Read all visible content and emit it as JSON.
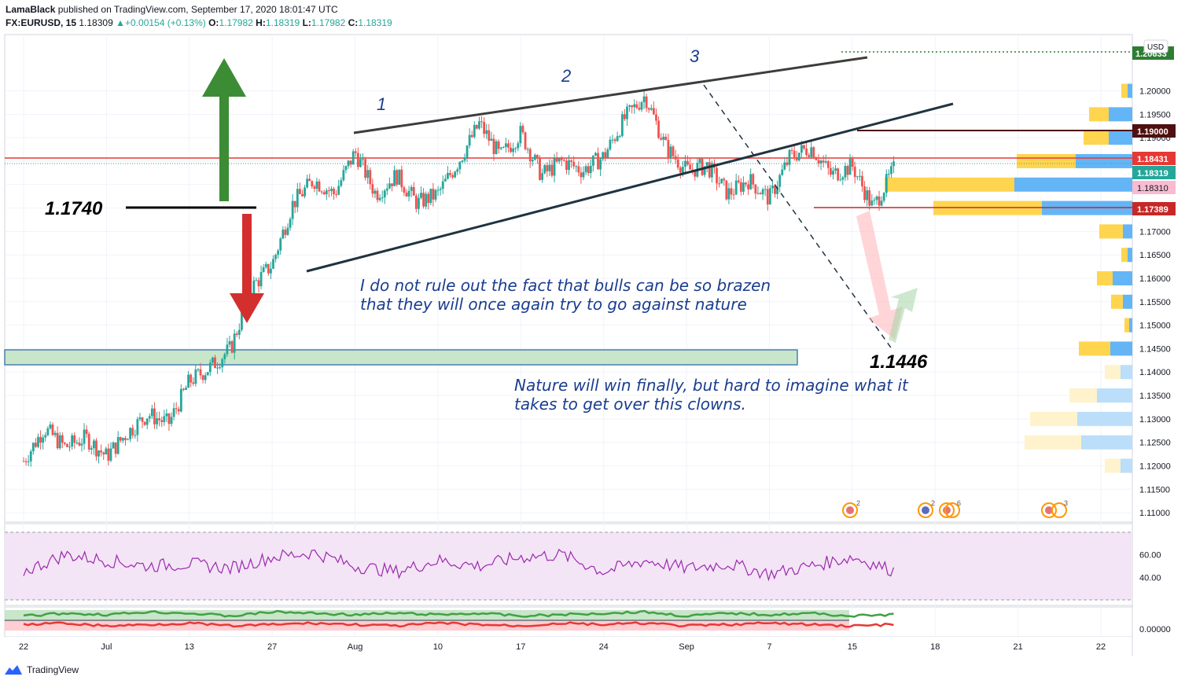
{
  "header": {
    "author": "LamaBlack",
    "published_text": "published on TradingView.com, September 17, 2020 18:01:47 UTC",
    "symbol": "FX:EURUSD, 15",
    "last": "1.18309",
    "change": "+0.00154 (+0.13%)",
    "o_label": "O:",
    "o_value": "1.17982",
    "h_label": "H:",
    "h_value": "1.18319",
    "l_label": "L:",
    "l_value": "1.17982",
    "c_label": "C:",
    "c_value": "1.18319"
  },
  "footer": {
    "brand": "TradingView"
  },
  "colors": {
    "bull": "#26a69a",
    "bear": "#ef5350",
    "grid": "#f0f3fa",
    "rsi": "#9c27b0",
    "rsi_band": "#f3e5f5",
    "support_zone": "#c8e6c9",
    "vol_up": "#64b5f6",
    "vol_down": "#ffd54f"
  },
  "chart_data": [
    {
      "type": "candlestick",
      "title": "EURUSD",
      "currency": "USD",
      "ylim": [
        1.108,
        1.212
      ],
      "y_ticks": [
        "1.20000",
        "1.19500",
        "1.19000",
        "1.18500",
        "1.18000",
        "1.17500",
        "1.17000",
        "1.16500",
        "1.16000",
        "1.15500",
        "1.15000",
        "1.14500",
        "1.14000",
        "1.13500",
        "1.13000",
        "1.12500",
        "1.12000",
        "1.11500",
        "1.11000"
      ],
      "x_ticks": [
        "22",
        "Jul",
        "13",
        "27",
        "Aug",
        "10",
        "17",
        "24",
        "Sep",
        "7",
        "15",
        "18",
        "21",
        "22"
      ],
      "x_ticks_at": [
        0,
        2,
        4,
        6,
        8,
        10,
        12,
        14,
        16,
        18,
        20,
        22,
        24,
        26
      ],
      "series": [
        {
          "x": [
            0,
            0.5,
            1,
            1.5,
            2,
            2.5,
            3,
            3.5,
            4,
            4.5,
            5,
            5.5,
            6,
            6.5,
            7,
            7.5,
            8,
            8.5,
            9,
            9.5,
            10,
            10.5,
            11,
            11.5,
            12,
            12.5,
            13,
            13.5,
            14,
            14.5,
            15,
            15.5,
            16,
            16.5,
            17,
            17.5,
            18,
            18.5,
            19,
            19.5,
            20,
            20.5,
            21
          ],
          "close": [
            1.121,
            1.128,
            1.124,
            1.126,
            1.122,
            1.127,
            1.131,
            1.129,
            1.138,
            1.141,
            1.145,
            1.158,
            1.163,
            1.176,
            1.181,
            1.178,
            1.187,
            1.178,
            1.182,
            1.176,
            1.178,
            1.185,
            1.193,
            1.186,
            1.191,
            1.182,
            1.185,
            1.183,
            1.186,
            1.194,
            1.199,
            1.188,
            1.183,
            1.184,
            1.178,
            1.181,
            1.177,
            1.186,
            1.188,
            1.182,
            1.184,
            1.175,
            1.1832
          ]
        }
      ],
      "price_labels": [
        "1.19000",
        "1.18431",
        "1.18319",
        "1.18310",
        "1.17389",
        "1.20633"
      ],
      "volume_profile": [
        {
          "price": "1.2000",
          "up": 8,
          "down": 6
        },
        {
          "price": "1.1950",
          "up": 25,
          "down": 30
        },
        {
          "price": "1.1900",
          "up": 32,
          "down": 30
        },
        {
          "price": "1.1850",
          "up": 75,
          "down": 72
        },
        {
          "price": "1.1800",
          "up": 165,
          "down": 150
        },
        {
          "price": "1.1750",
          "up": 138,
          "down": 115
        },
        {
          "price": "1.1700",
          "up": 30,
          "down": 12
        },
        {
          "price": "1.1650",
          "up": 8,
          "down": 6
        },
        {
          "price": "1.1600",
          "up": 20,
          "down": 25
        },
        {
          "price": "1.1550",
          "up": 15,
          "down": 12
        },
        {
          "price": "1.1500",
          "up": 6,
          "down": 4
        },
        {
          "price": "1.1450",
          "up": 40,
          "down": 28
        },
        {
          "price": "1.1400",
          "up": 20,
          "down": 15
        },
        {
          "price": "1.1350",
          "up": 35,
          "down": 45
        },
        {
          "price": "1.1300",
          "up": 60,
          "down": 70
        },
        {
          "price": "1.1250",
          "up": 72,
          "down": 65
        },
        {
          "price": "1.1200",
          "up": 20,
          "down": 15
        }
      ],
      "annotations": {
        "wave_labels": [
          "1",
          "2",
          "3"
        ],
        "level_label": "1.1740",
        "target_label": "1.1446",
        "text1_line1": "I do not rule out the fact that bulls can be so brazen",
        "text1_line2": "that they will once again try to go against nature",
        "text2_line1": "Nature will win finally, but hard to imagine what it",
        "text2_line2": "takes to get over this clowns."
      }
    },
    {
      "type": "line",
      "title": "RSI",
      "ylim": [
        20,
        80
      ],
      "y_ticks": [
        "60.00",
        "40.00"
      ],
      "series": [
        {
          "x": [
            0,
            1,
            2,
            3,
            4,
            5,
            6,
            7,
            8,
            9,
            10,
            11,
            12,
            13,
            14,
            15,
            16,
            17,
            18,
            19,
            20,
            21
          ],
          "values": [
            45,
            60,
            55,
            50,
            52,
            48,
            58,
            62,
            50,
            45,
            55,
            50,
            58,
            60,
            45,
            55,
            48,
            52,
            43,
            50,
            58,
            46
          ]
        }
      ]
    },
    {
      "type": "area",
      "title": "Oscillator",
      "y_ticks": [
        "0.00000"
      ],
      "series": [
        {
          "name": "green",
          "values": [
            0.3,
            0.5,
            0.4,
            0.6,
            0.5,
            0.3,
            0.6,
            0.5,
            0.4,
            0.5,
            0.4,
            0.5,
            0.3,
            0.4,
            0.5,
            0.6,
            0.3,
            0.5,
            0.4,
            0.5,
            0.3,
            0.4
          ]
        },
        {
          "name": "red",
          "values": [
            -0.3,
            -0.2,
            -0.4,
            -0.3,
            -0.2,
            -0.4,
            -0.3,
            -0.2,
            -0.3,
            -0.4,
            -0.2,
            -0.3,
            -0.4,
            -0.2,
            -0.3,
            -0.2,
            -0.4,
            -0.3,
            -0.2,
            -0.3,
            -0.4,
            -0.3
          ]
        }
      ]
    }
  ]
}
